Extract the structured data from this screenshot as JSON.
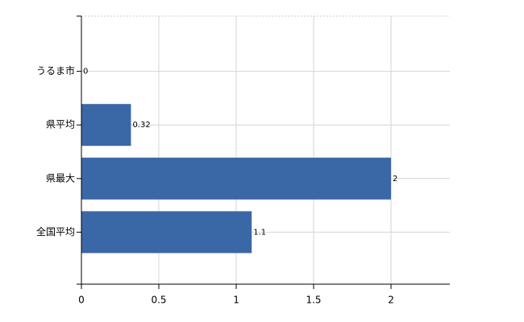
{
  "chart_data": {
    "type": "bar",
    "orientation": "horizontal",
    "categories": [
      "うるま市",
      "県平均",
      "県最大",
      "全国平均"
    ],
    "values": [
      0,
      0.32,
      2,
      1.1
    ],
    "color": "#3a68a6",
    "xlim": [
      0,
      2.38
    ],
    "xticks": [
      0,
      0.5,
      1,
      1.5,
      2
    ],
    "grid": true
  }
}
